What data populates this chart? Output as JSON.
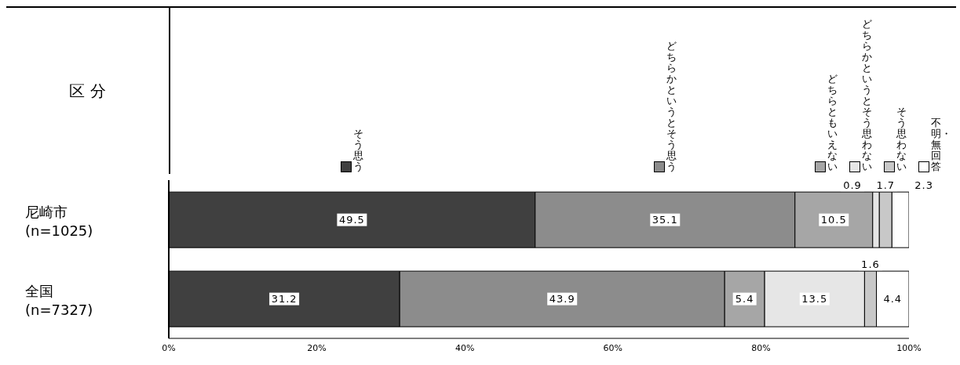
{
  "chart_data": {
    "type": "bar",
    "orientation": "horizontal",
    "stacked": true,
    "annotations": [
      "区 分"
    ],
    "categories": [
      "尼崎市(n=1025)",
      "全国(n=7327)"
    ],
    "series": [
      {
        "name": "そう思う",
        "color": "#404040",
        "values": [
          49.5,
          31.2
        ]
      },
      {
        "name": "どちらかというとそう思う",
        "color": "#8c8c8c",
        "values": [
          35.1,
          43.9
        ]
      },
      {
        "name": "どちらともいえない",
        "color": "#a6a6a6",
        "values": [
          10.5,
          5.4
        ]
      },
      {
        "name": "どちらかというとそう思わない",
        "color": "#e6e6e6",
        "values": [
          0.9,
          13.5
        ]
      },
      {
        "name": "そう思わない",
        "color": "#c8c8c8",
        "values": [
          1.7,
          1.6
        ]
      },
      {
        "name": "不明・無回答",
        "color": "#ffffff",
        "values": [
          2.3,
          4.4
        ]
      }
    ],
    "xlim": [
      0,
      100
    ],
    "xticks": [
      {
        "value": 0,
        "label": "0%"
      },
      {
        "value": 20,
        "label": "20%"
      },
      {
        "value": 40,
        "label": "40%"
      },
      {
        "value": 60,
        "label": "60%"
      },
      {
        "value": 80,
        "label": "80%"
      },
      {
        "value": 100,
        "label": "100%"
      }
    ],
    "data_labels": true
  }
}
